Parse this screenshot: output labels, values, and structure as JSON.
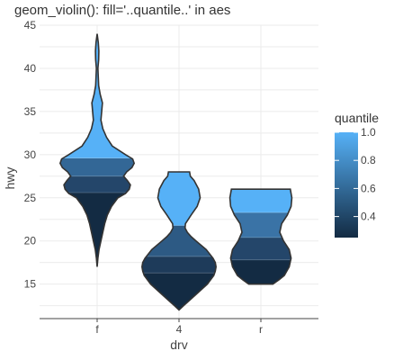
{
  "chart_data": {
    "type": "violin",
    "title": "geom_violin(): fill='..quantile..' in aes",
    "xlabel": "drv",
    "ylabel": "hwy",
    "categories": [
      "f",
      "4",
      "r"
    ],
    "ylim": [
      11,
      45
    ],
    "yticks": [
      15,
      20,
      25,
      30,
      35,
      40,
      45
    ],
    "grid": true,
    "legend": {
      "title": "quantile",
      "position": "right",
      "range": [
        0.25,
        1.0
      ],
      "ticks": [
        "0.4",
        "0.6",
        "0.8",
        "1.0"
      ],
      "tick_values": [
        0.4,
        0.6,
        0.8,
        1.0
      ],
      "color_low": "#132b43",
      "color_high": "#56b1f7"
    },
    "violins": [
      {
        "category": "f",
        "quantile_cuts": [
          17,
          25.6,
          27.5,
          29.6,
          44
        ],
        "band_colors": [
          "#132b43",
          "#24466a",
          "#336796",
          "#56b1f7"
        ],
        "density": [
          [
            17,
            0.0
          ],
          [
            18,
            0.02
          ],
          [
            19,
            0.05
          ],
          [
            20,
            0.1
          ],
          [
            21,
            0.15
          ],
          [
            22,
            0.2
          ],
          [
            23,
            0.27
          ],
          [
            24,
            0.38
          ],
          [
            25,
            0.55
          ],
          [
            25.5,
            0.75
          ],
          [
            26,
            0.85
          ],
          [
            26.5,
            0.88
          ],
          [
            27,
            0.8
          ],
          [
            27.5,
            0.7
          ],
          [
            28,
            0.78
          ],
          [
            28.5,
            0.92
          ],
          [
            29,
            0.98
          ],
          [
            29.5,
            0.94
          ],
          [
            30,
            0.75
          ],
          [
            31,
            0.4
          ],
          [
            32,
            0.25
          ],
          [
            33,
            0.15
          ],
          [
            34,
            0.1
          ],
          [
            35,
            0.12
          ],
          [
            36,
            0.14
          ],
          [
            37,
            0.08
          ],
          [
            38,
            0.04
          ],
          [
            39,
            0.03
          ],
          [
            40,
            0.02
          ],
          [
            41,
            0.04
          ],
          [
            42,
            0.045
          ],
          [
            43,
            0.03
          ],
          [
            44,
            0.0
          ]
        ]
      },
      {
        "category": "4",
        "quantile_cuts": [
          12,
          16.3,
          18.2,
          21.8,
          28
        ],
        "band_colors": [
          "#132b43",
          "#1e3b5a",
          "#2d5a84",
          "#56b1f7"
        ],
        "density": [
          [
            12,
            0.0
          ],
          [
            12.5,
            0.12
          ],
          [
            13,
            0.25
          ],
          [
            14,
            0.5
          ],
          [
            15,
            0.75
          ],
          [
            16,
            0.92
          ],
          [
            16.5,
            0.96
          ],
          [
            17,
            0.98
          ],
          [
            17.5,
            0.96
          ],
          [
            18,
            0.9
          ],
          [
            19,
            0.72
          ],
          [
            20,
            0.45
          ],
          [
            20.5,
            0.32
          ],
          [
            21,
            0.22
          ],
          [
            21.5,
            0.16
          ],
          [
            22,
            0.17
          ],
          [
            23,
            0.32
          ],
          [
            24,
            0.48
          ],
          [
            25,
            0.56
          ],
          [
            26,
            0.52
          ],
          [
            27,
            0.4
          ],
          [
            27.5,
            0.3
          ],
          [
            28,
            0.28
          ]
        ]
      },
      {
        "category": "r",
        "quantile_cuts": [
          15,
          17.8,
          20.4,
          23.3,
          26
        ],
        "band_colors": [
          "#132b43",
          "#24466a",
          "#3a73a6",
          "#56b1f7"
        ],
        "density": [
          [
            15,
            0.32
          ],
          [
            15.5,
            0.48
          ],
          [
            16,
            0.62
          ],
          [
            17,
            0.75
          ],
          [
            18,
            0.8
          ],
          [
            19,
            0.75
          ],
          [
            20,
            0.6
          ],
          [
            21,
            0.5
          ],
          [
            22,
            0.55
          ],
          [
            23,
            0.7
          ],
          [
            24,
            0.8
          ],
          [
            25,
            0.82
          ],
          [
            25.5,
            0.8
          ],
          [
            26,
            0.78
          ]
        ]
      }
    ]
  }
}
